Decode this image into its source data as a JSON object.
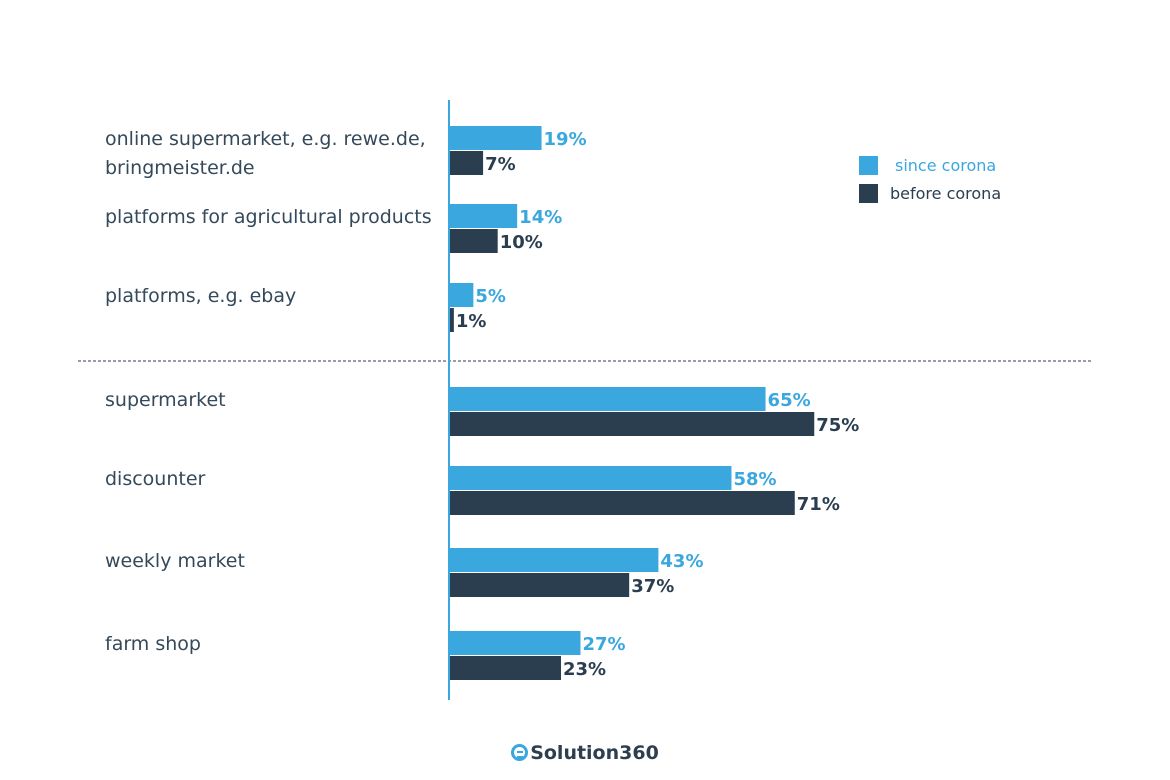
{
  "chart_data": {
    "type": "bar",
    "orientation": "horizontal",
    "categories": [
      [
        "online supermarket, e.g. rewe.de,",
        "bringmeister.de"
      ],
      [
        "platforms for agricultural products"
      ],
      [
        "platforms, e.g. ebay"
      ],
      [
        "supermarket"
      ],
      [
        "discounter"
      ],
      [
        "weekly market"
      ],
      [
        "farm shop"
      ]
    ],
    "series": [
      {
        "name": "since corona",
        "color": "#3aa7df",
        "values": [
          19,
          14,
          5,
          65,
          58,
          43,
          27
        ]
      },
      {
        "name": "before corona",
        "color": "#2b3e50",
        "values": [
          7,
          10,
          1,
          75,
          71,
          37,
          23
        ]
      }
    ],
    "value_suffix": "%",
    "xlim": [
      0,
      100
    ],
    "separator_after_category": 3,
    "legend_position": "top-right",
    "grid": false
  },
  "brand": {
    "name": "Solution360"
  }
}
